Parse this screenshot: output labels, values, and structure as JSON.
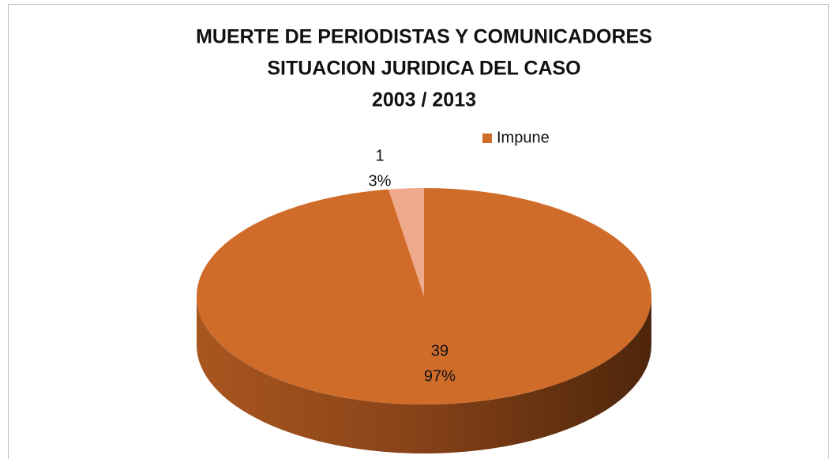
{
  "chart_data": {
    "type": "pie",
    "title_lines": [
      "MUERTE DE PERIODISTAS Y COMUNICADORES",
      "SITUACION JURIDICA DEL CASO",
      "2003 / 2013"
    ],
    "categories": [
      "Impune",
      null
    ],
    "values": [
      39,
      1
    ],
    "percents": [
      97,
      3
    ],
    "percent_labels": [
      "97%",
      "3%"
    ],
    "colors": [
      "#d06c2a",
      "#f0a98a"
    ],
    "legend": "top-right"
  }
}
